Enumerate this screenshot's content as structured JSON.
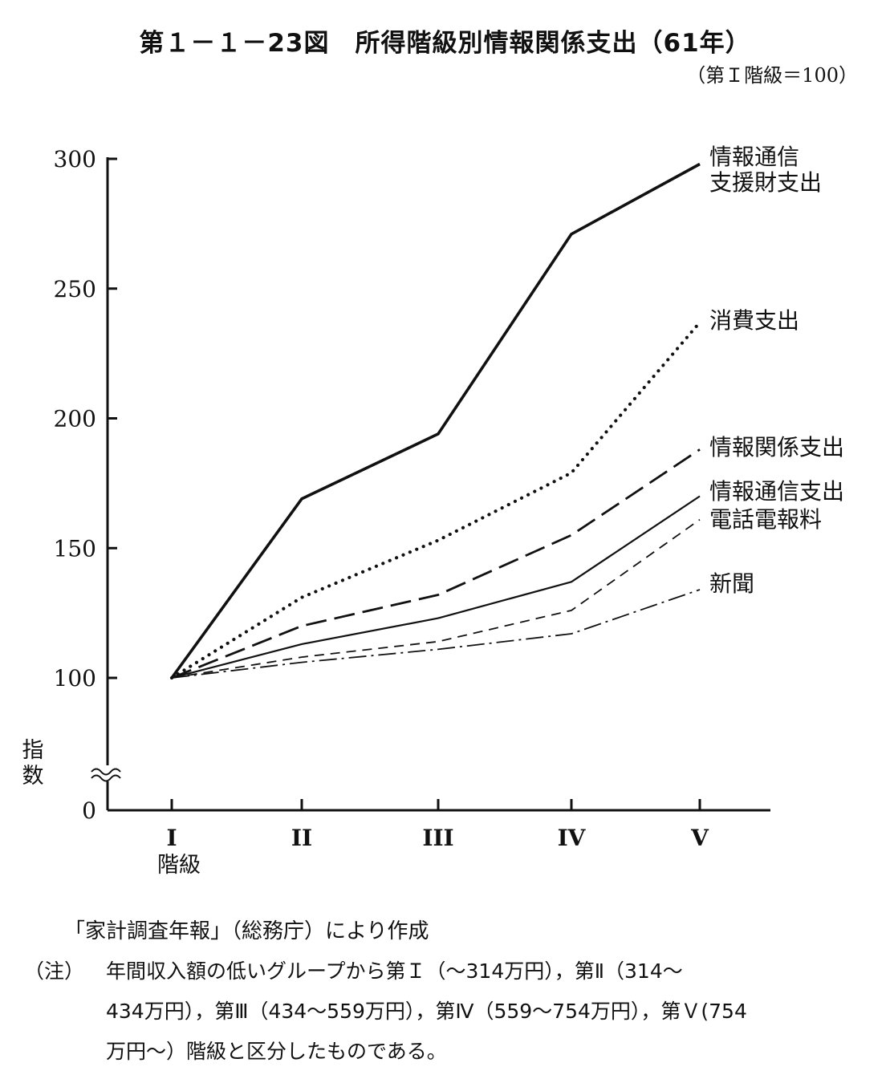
{
  "title": "第１－１－23図　所得階級別情報関係支出（61年）",
  "subtitle": "（第Ｉ階級＝100）",
  "y_axis_title": "指数",
  "x_axis_unit": "階級",
  "source": "「家計調査年報」（総務庁）により作成",
  "note": {
    "head": "（注）",
    "line1": "年間収入額の低いグループから第Ｉ（～314万円），第Ⅱ（314～",
    "line2": "434万円），第Ⅲ（434～559万円），第Ⅳ（559～754万円），第Ｖ(754",
    "line3": "万円～）階級と区分したものである。"
  },
  "chart_data": {
    "type": "line",
    "title": "所得階級別情報関係支出（61年）",
    "categories": [
      "I",
      "II",
      "III",
      "IV",
      "V"
    ],
    "ylabel": "指数",
    "y_ticks": [
      "0",
      "100",
      "150",
      "200",
      "250",
      "300"
    ],
    "ylim": [
      0,
      300
    ],
    "y_axis_break": true,
    "grid": false,
    "series": [
      {
        "name": "情報通信\n支援財支出",
        "values": [
          100,
          169,
          194,
          271,
          298
        ],
        "style": "solid-thick"
      },
      {
        "name": "消費支出",
        "values": [
          100,
          131,
          153,
          179,
          237
        ],
        "style": "dotted"
      },
      {
        "name": "情報関係支出",
        "values": [
          100,
          120,
          132,
          155,
          188
        ],
        "style": "long-dash"
      },
      {
        "name": "情報通信支出",
        "values": [
          100,
          113,
          123,
          137,
          170
        ],
        "style": "solid-thin"
      },
      {
        "name": "電話電報料",
        "values": [
          100,
          108,
          114,
          126,
          161
        ],
        "style": "short-dash"
      },
      {
        "name": "新聞",
        "values": [
          100,
          106,
          111,
          117,
          134
        ],
        "style": "dash-dot"
      }
    ]
  }
}
